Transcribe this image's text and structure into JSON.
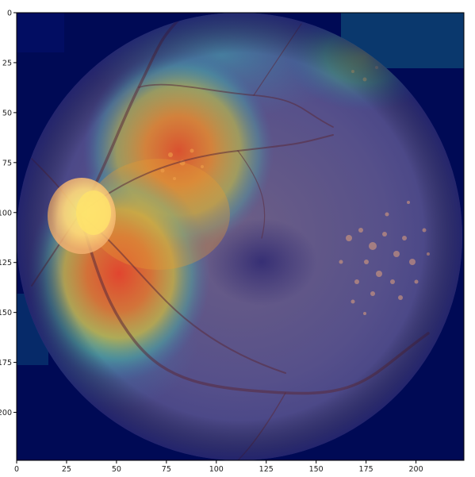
{
  "figure": {
    "type": "image-heatmap-overlay",
    "description_free": true,
    "colormap": "jet",
    "background_color": "#000a55"
  },
  "axes": {
    "x_ticks": [
      "0",
      "25",
      "50",
      "75",
      "100",
      "125",
      "150",
      "175",
      "200"
    ],
    "x_tick_values": [
      0,
      25,
      50,
      75,
      100,
      125,
      150,
      175,
      200
    ],
    "y_ticks": [
      "0",
      "25",
      "50",
      "75",
      "100",
      "125",
      "150",
      "175",
      "200"
    ],
    "y_tick_values": [
      0,
      25,
      50,
      75,
      100,
      125,
      150,
      175,
      200
    ],
    "x_range": [
      0,
      224
    ],
    "y_range": [
      0,
      224
    ],
    "grid": false
  }
}
